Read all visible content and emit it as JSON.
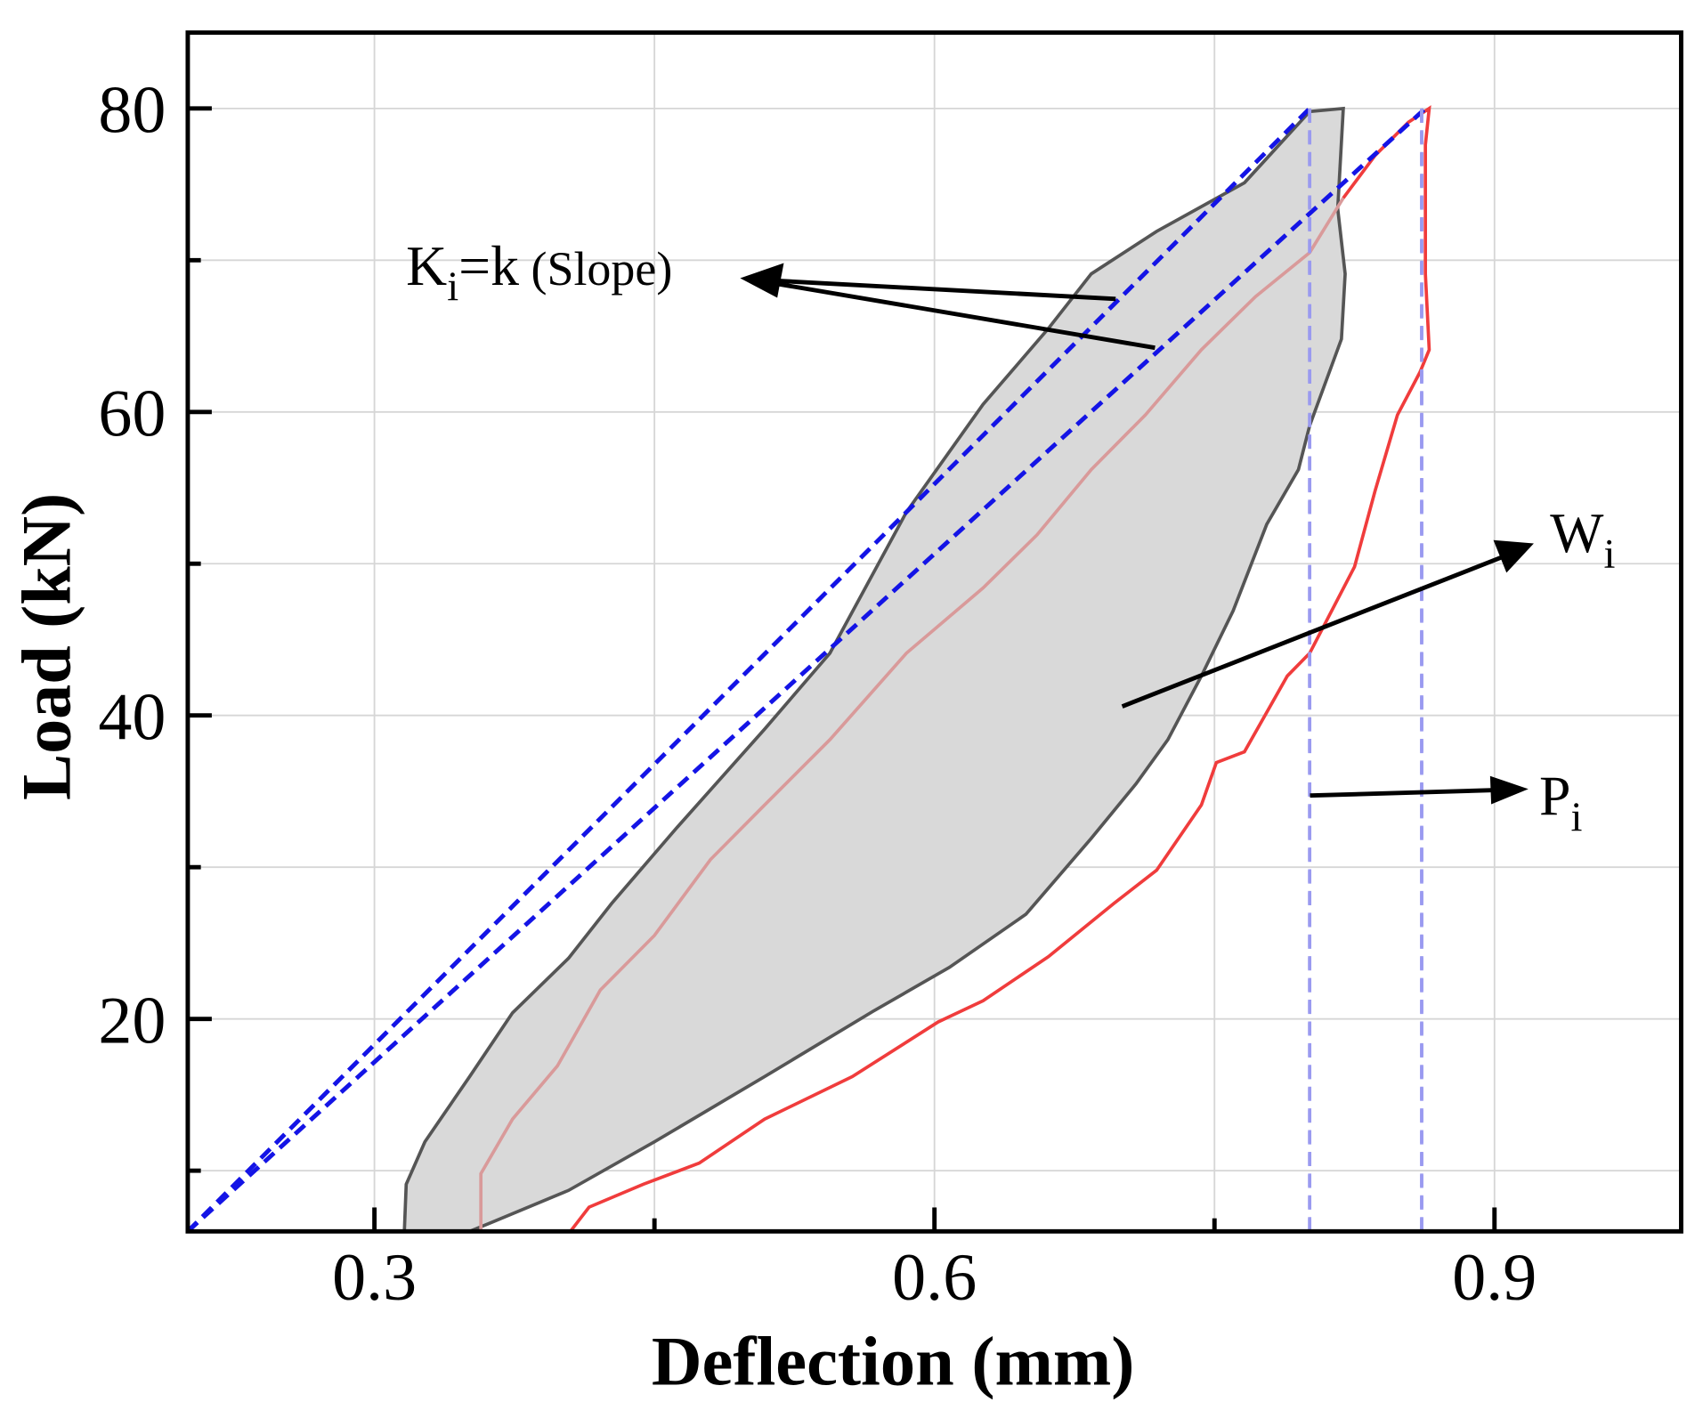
{
  "chart_data": {
    "type": "line",
    "title": "",
    "xlabel": "Deflection (mm)",
    "ylabel": "Load (kN)",
    "xlim": [
      0.2,
      1.0
    ],
    "ylim": [
      6,
      85
    ],
    "grid": true,
    "x_ticks": [
      0.3,
      0.6,
      0.9
    ],
    "x_tick_labels": [
      "0.3",
      "0.6",
      "0.9"
    ],
    "x_minor_ticks": [
      0.45,
      0.75
    ],
    "y_ticks": [
      20,
      40,
      60,
      80
    ],
    "y_tick_labels": [
      "20",
      "40",
      "60",
      "80"
    ],
    "y_minor_ticks": [
      10,
      30,
      50,
      70
    ],
    "series": [
      {
        "name": "hysteresis-area",
        "kind": "filled-loop",
        "color": "#d9d9d9",
        "stroke": "#555555",
        "x": [
          0.316,
          0.317,
          0.327,
          0.351,
          0.374,
          0.404,
          0.427,
          0.462,
          0.509,
          0.544,
          0.585,
          0.626,
          0.661,
          0.684,
          0.719,
          0.766,
          0.801,
          0.819,
          0.816,
          0.82,
          0.818,
          0.801,
          0.795,
          0.778,
          0.76,
          0.743,
          0.725,
          0.708,
          0.684,
          0.649,
          0.608,
          0.567,
          0.509,
          0.45,
          0.404,
          0.363,
          0.351
        ],
        "y": [
          6,
          9.1,
          11.9,
          16.2,
          20.4,
          24,
          27.6,
          32.6,
          39.1,
          44.1,
          53.4,
          60.5,
          65.5,
          69.1,
          71.9,
          75.1,
          79.8,
          80,
          73.4,
          69.1,
          64.8,
          59.1,
          56.2,
          52.6,
          46.9,
          42.6,
          38.4,
          35.5,
          31.9,
          26.9,
          23.4,
          20.5,
          16.2,
          11.9,
          8.7,
          6.6,
          6
        ]
      },
      {
        "name": "loading-curve",
        "kind": "line",
        "color": "#d99a9a",
        "x": [
          0.357,
          0.357,
          0.374,
          0.398,
          0.421,
          0.45,
          0.48,
          0.509,
          0.544,
          0.585,
          0.626,
          0.655,
          0.684,
          0.713,
          0.743,
          0.772,
          0.801,
          0.819
        ],
        "y": [
          6,
          9.8,
          13.4,
          16.9,
          21.9,
          25.5,
          30.5,
          34.1,
          38.4,
          44.1,
          48.4,
          51.9,
          56.2,
          59.8,
          64.1,
          67.6,
          70.5,
          74.1
        ]
      },
      {
        "name": "next-cycle-curve",
        "kind": "line",
        "color": "#f03c3c",
        "x": [
          0.819,
          0.836,
          0.854,
          0.865,
          0.863,
          0.863,
          0.865,
          0.86,
          0.848,
          0.836,
          0.825,
          0.801,
          0.789,
          0.766,
          0.751,
          0.743,
          0.719,
          0.696,
          0.661,
          0.626,
          0.602,
          0.556,
          0.509,
          0.474,
          0.444,
          0.415,
          0.405
        ],
        "y": [
          74.1,
          76.9,
          79.1,
          80,
          77.6,
          69.1,
          64.1,
          62.6,
          59.8,
          54.8,
          49.8,
          44.1,
          42.6,
          37.6,
          36.9,
          34.1,
          29.8,
          27.6,
          24.1,
          21.2,
          19.8,
          16.2,
          13.4,
          10.5,
          9.1,
          7.6,
          6
        ]
      },
      {
        "name": "slope-line-1",
        "kind": "dashed",
        "color": "#1414e6",
        "x": [
          0.2,
          0.801
        ],
        "y": [
          6,
          80
        ]
      },
      {
        "name": "slope-line-2",
        "kind": "dashed",
        "color": "#1414e6",
        "x": [
          0.2,
          0.863
        ],
        "y": [
          6,
          80
        ]
      },
      {
        "name": "peak-deflection-1",
        "kind": "dashed-vertical",
        "color": "#9a9af0",
        "x": [
          0.801,
          0.801
        ],
        "y": [
          6,
          80
        ]
      },
      {
        "name": "peak-deflection-2",
        "kind": "dashed-vertical",
        "color": "#9a9af0",
        "x": [
          0.861,
          0.861
        ],
        "y": [
          6,
          80
        ]
      }
    ],
    "annotations": [
      {
        "id": "slope",
        "main": "K",
        "sub": "i",
        "rest": "=k",
        "small": " (Slope)"
      },
      {
        "id": "energy",
        "main": "W",
        "sub": "i"
      },
      {
        "id": "peak",
        "main": "P",
        "sub": "i"
      }
    ]
  }
}
